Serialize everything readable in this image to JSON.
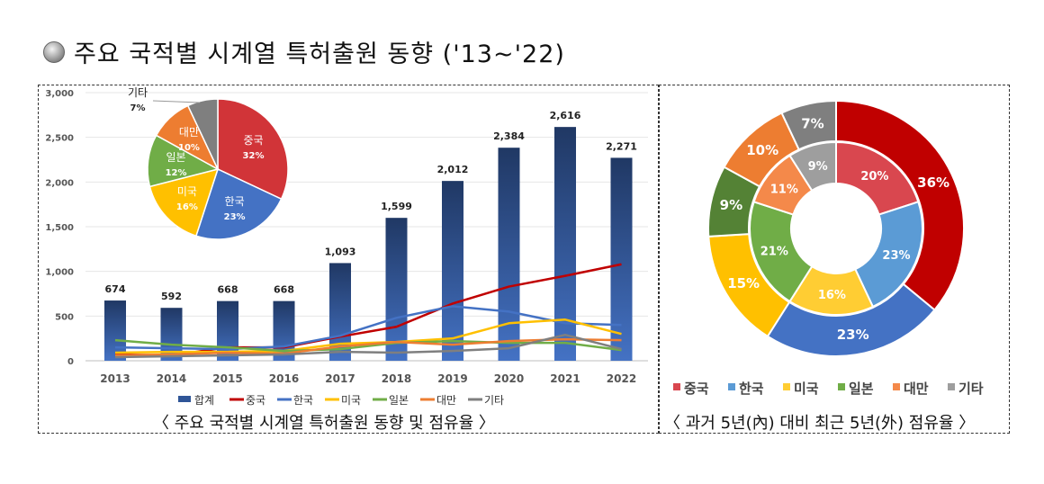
{
  "title": "주요 국적별 시계열 특허출원 동향 ('13~'22)",
  "chart_data": [
    {
      "type": "bar+line",
      "caption": "〈 주요 국적별 시계열 특허출원 동향 및 점유율 〉",
      "categories": [
        "2013",
        "2014",
        "2015",
        "2016",
        "2017",
        "2018",
        "2019",
        "2020",
        "2021",
        "2022"
      ],
      "ylim": [
        0,
        3000
      ],
      "yticks": [
        "0",
        "500",
        "1,000",
        "1,500",
        "2,000",
        "2,500",
        "3,000"
      ],
      "grid": true,
      "legend_position": "bottom",
      "series": [
        {
          "name": "합계",
          "kind": "bar",
          "color": "#2f5597",
          "values": [
            674,
            592,
            668,
            668,
            1093,
            1599,
            2012,
            2384,
            2616,
            2271
          ],
          "labels": [
            "674",
            "592",
            "668",
            "668",
            "1,093",
            "1,599",
            "2,012",
            "2,384",
            "2,616",
            "2,271"
          ]
        },
        {
          "name": "중국",
          "kind": "line",
          "color": "#c00000",
          "values": [
            70,
            60,
            150,
            150,
            270,
            380,
            640,
            830,
            950,
            1080
          ]
        },
        {
          "name": "한국",
          "kind": "line",
          "color": "#4472c4",
          "values": [
            150,
            140,
            130,
            160,
            280,
            480,
            610,
            550,
            420,
            400
          ]
        },
        {
          "name": "미국",
          "kind": "line",
          "color": "#ffc000",
          "values": [
            90,
            100,
            100,
            110,
            190,
            210,
            250,
            420,
            460,
            300
          ]
        },
        {
          "name": "일본",
          "kind": "line",
          "color": "#70ad47",
          "values": [
            230,
            180,
            150,
            110,
            130,
            200,
            220,
            200,
            200,
            120
          ]
        },
        {
          "name": "대만",
          "kind": "line",
          "color": "#ed7d31",
          "values": [
            60,
            70,
            90,
            80,
            160,
            210,
            180,
            220,
            240,
            230
          ]
        },
        {
          "name": "기타",
          "kind": "line",
          "color": "#7f7f7f",
          "values": [
            40,
            50,
            60,
            70,
            100,
            90,
            110,
            140,
            290,
            130
          ]
        }
      ]
    },
    {
      "type": "pie",
      "slices": [
        {
          "name": "중국",
          "value": 32,
          "label": "32%",
          "color": "#d13438"
        },
        {
          "name": "한국",
          "value": 23,
          "label": "23%",
          "color": "#4472c4"
        },
        {
          "name": "미국",
          "value": 16,
          "label": "16%",
          "color": "#ffc000"
        },
        {
          "name": "일본",
          "value": 12,
          "label": "12%",
          "color": "#70ad47"
        },
        {
          "name": "대만",
          "value": 10,
          "label": "10%",
          "color": "#ed7d31"
        },
        {
          "name": "기타",
          "value": 7,
          "label": "7%",
          "color": "#7f7f7f"
        }
      ]
    },
    {
      "type": "donut",
      "caption": "〈 과거 5년(內) 대비 최근 5년(外) 점유율 〉",
      "legend_position": "bottom",
      "categories": [
        "중국",
        "한국",
        "미국",
        "일본",
        "대만",
        "기타"
      ],
      "colors_outer": [
        "#c00000",
        "#4472c4",
        "#ffc000",
        "#548235",
        "#ed7d31",
        "#7f7f7f"
      ],
      "colors_inner": [
        "#d9474f",
        "#5b9bd5",
        "#ffcd33",
        "#70ad47",
        "#f4894a",
        "#9e9e9e"
      ],
      "legend_colors": [
        "#d9474f",
        "#5b9bd5",
        "#ffcd33",
        "#70ad47",
        "#f4894a",
        "#9e9e9e"
      ],
      "inner": {
        "values": [
          20,
          23,
          16,
          21,
          11,
          9
        ]
      },
      "outer": {
        "values": [
          36,
          23,
          15,
          9,
          10,
          7
        ]
      }
    }
  ]
}
